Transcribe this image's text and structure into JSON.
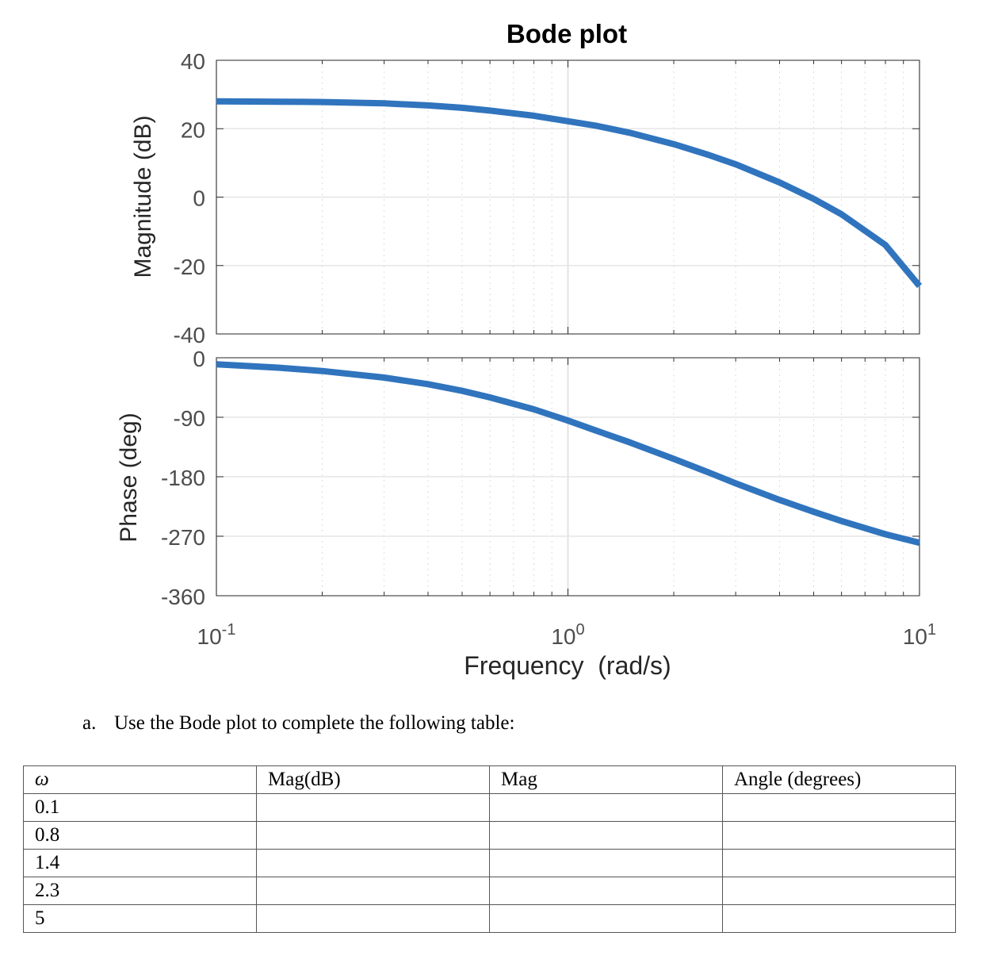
{
  "chart_data": {
    "type": "line",
    "title": "Bode plot",
    "xlabel": "Frequency  (rad/s)",
    "xscale": "log",
    "xlim": [
      0.1,
      10
    ],
    "x_ticks": [
      {
        "value": 0.1,
        "base": "10",
        "exp": "-1"
      },
      {
        "value": 1,
        "base": "10",
        "exp": "0"
      },
      {
        "value": 10,
        "base": "10",
        "exp": "1"
      }
    ],
    "grid": true,
    "line_color": "#3074be",
    "panels": [
      {
        "name": "magnitude",
        "ylabel": "Magnitude (dB)",
        "ylim": [
          -40,
          40
        ],
        "yticks": [
          "40",
          "20",
          "0",
          "-20",
          "-40"
        ],
        "ytick_values": [
          40,
          20,
          0,
          -20,
          -40
        ],
        "series": [
          {
            "x": [
              0.1,
              0.15,
              0.2,
              0.3,
              0.4,
              0.5,
              0.6,
              0.8,
              1,
              1.2,
              1.5,
              2,
              2.5,
              3,
              4,
              5,
              6,
              8,
              10
            ],
            "values": [
              28,
              27.9,
              27.8,
              27.4,
              26.8,
              26.1,
              25.3,
              23.8,
              22.2,
              20.9,
              18.8,
              15.5,
              12.4,
              9.6,
              4.3,
              -0.5,
              -5,
              -14,
              -26
            ]
          }
        ]
      },
      {
        "name": "phase",
        "ylabel": "Phase (deg)",
        "ylim": [
          -360,
          0
        ],
        "yticks": [
          "0",
          "-90",
          "-180",
          "-270",
          "-360"
        ],
        "ytick_values": [
          0,
          -90,
          -180,
          -270,
          -360
        ],
        "series": [
          {
            "x": [
              0.1,
              0.15,
              0.2,
              0.3,
              0.4,
              0.5,
              0.6,
              0.8,
              1,
              1.2,
              1.5,
              2,
              2.5,
              3,
              4,
              5,
              6,
              8,
              10
            ],
            "values": [
              -10,
              -15,
              -20,
              -30,
              -40,
              -50,
              -60,
              -78,
              -95,
              -110,
              -128,
              -153,
              -173,
              -190,
              -215,
              -233,
              -247,
              -267,
              -280
            ]
          }
        ]
      }
    ]
  },
  "question": {
    "label": "a.",
    "text": "Use the Bode plot to complete the following table:"
  },
  "table": {
    "headers": [
      "ω",
      "Mag(dB)",
      "Mag",
      "Angle (degrees)"
    ],
    "rows": [
      [
        "0.1",
        "",
        "",
        ""
      ],
      [
        "0.8",
        "",
        "",
        ""
      ],
      [
        "1.4",
        "",
        "",
        ""
      ],
      [
        "2.3",
        "",
        "",
        ""
      ],
      [
        "5",
        "",
        "",
        ""
      ]
    ]
  }
}
